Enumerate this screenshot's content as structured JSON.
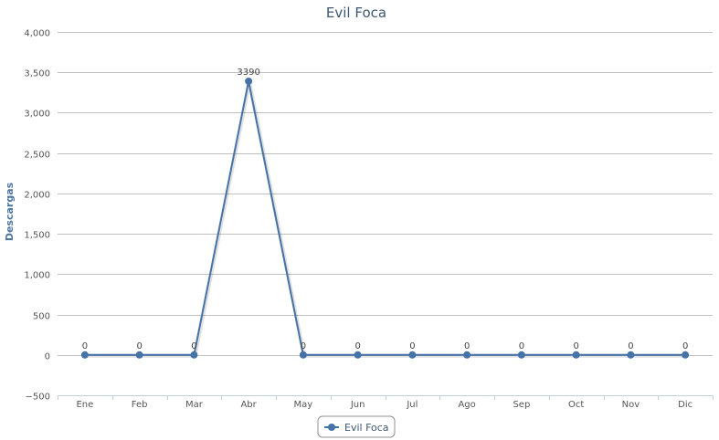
{
  "colors": {
    "series": "#4572a7",
    "grid": "#c0c0c0",
    "axis": "#c0d0e0",
    "title": "#3e576f",
    "ylabel": "#4d759e"
  },
  "chart_data": {
    "type": "line",
    "title": "Evil Foca",
    "xlabel": "",
    "ylabel": "Descargas",
    "categories": [
      "Ene",
      "Feb",
      "Mar",
      "Abr",
      "May",
      "Jun",
      "Jul",
      "Ago",
      "Sep",
      "Oct",
      "Nov",
      "Dic"
    ],
    "series": [
      {
        "name": "Evil Foca",
        "values": [
          0,
          0,
          0,
          3390,
          0,
          0,
          0,
          0,
          0,
          0,
          0,
          0
        ]
      }
    ],
    "ylim": [
      -500,
      4000
    ],
    "yticks": [
      -500,
      0,
      500,
      1000,
      1500,
      2000,
      2500,
      3000,
      3500,
      4000
    ],
    "ytick_labels": [
      "−500",
      "0",
      "500",
      "1,000",
      "1,500",
      "2,000",
      "2,500",
      "3,000",
      "3,500",
      "4,000"
    ],
    "grid": true,
    "data_labels": true,
    "legend_position": "bottom-center"
  }
}
